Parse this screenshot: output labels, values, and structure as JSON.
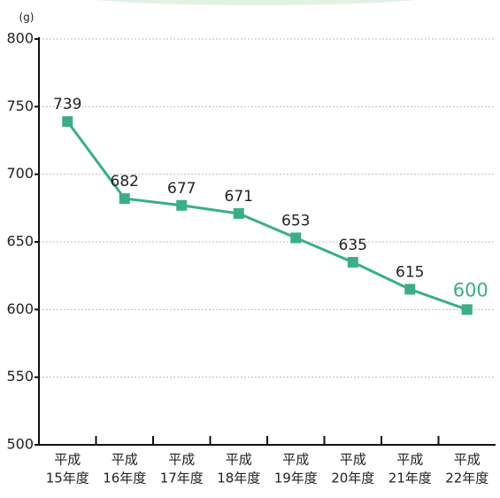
{
  "chart_data": {
    "type": "line",
    "y_label": "(g)",
    "categories": [
      [
        "平成",
        "15年度"
      ],
      [
        "平成",
        "16年度"
      ],
      [
        "平成",
        "17年度"
      ],
      [
        "平成",
        "18年度"
      ],
      [
        "平成",
        "19年度"
      ],
      [
        "平成",
        "20年度"
      ],
      [
        "平成",
        "21年度"
      ],
      [
        "平成",
        "22年度"
      ]
    ],
    "values": [
      739,
      682,
      677,
      671,
      653,
      635,
      615,
      600
    ],
    "color": "#3aaf85",
    "highlight": [
      7
    ],
    "ylim": [
      500,
      800
    ],
    "yticks": [
      500,
      550,
      600,
      650,
      700,
      750,
      800
    ],
    "grid": true
  }
}
